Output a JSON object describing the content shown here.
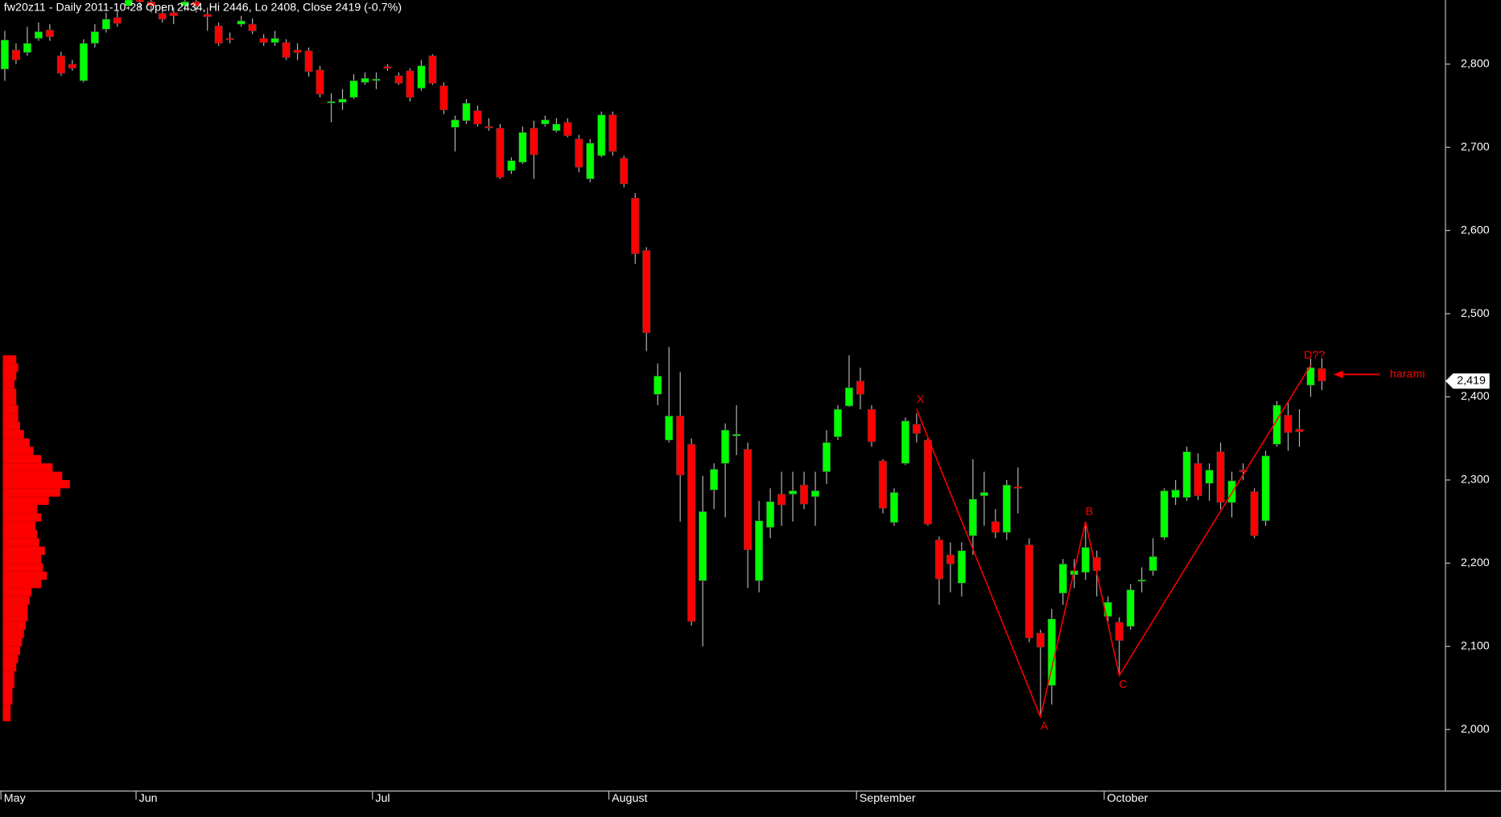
{
  "chart_data": {
    "type": "candlestick",
    "title": "fw20z11 - Daily 2011-10-28 Open 2434, Hi 2446, Lo 2408, Close 2419 (-0.7%)",
    "categories": [
      "May",
      null,
      null,
      null,
      null,
      null,
      null,
      null,
      null,
      null,
      null,
      null,
      "Jun",
      null,
      null,
      null,
      null,
      null,
      null,
      null,
      null,
      null,
      null,
      null,
      null,
      null,
      null,
      null,
      null,
      null,
      null,
      null,
      null,
      "Jul",
      null,
      null,
      null,
      null,
      null,
      null,
      null,
      null,
      null,
      null,
      null,
      null,
      null,
      null,
      null,
      null,
      null,
      null,
      null,
      null,
      "August",
      null,
      null,
      null,
      null,
      null,
      null,
      null,
      null,
      null,
      null,
      null,
      null,
      null,
      null,
      null,
      null,
      null,
      null,
      null,
      null,
      null,
      "September",
      null,
      null,
      null,
      null,
      null,
      null,
      null,
      null,
      null,
      null,
      null,
      null,
      null,
      null,
      null,
      null,
      null,
      null,
      null,
      null,
      null,
      "October",
      null,
      null,
      null,
      null,
      null,
      null,
      null,
      null,
      null,
      null,
      null,
      null,
      null,
      null,
      null,
      null,
      null,
      null,
      null
    ],
    "open": [
      2794,
      2817,
      2814,
      2831,
      2841,
      2810,
      2800,
      2780,
      2825,
      2842,
      2856,
      2870,
      2880,
      2875,
      2861,
      2862,
      2870,
      2875,
      2860,
      2846,
      2831,
      2848,
      2848,
      2831,
      2826,
      2826,
      2817,
      2816,
      2793,
      2754,
      2754,
      2760,
      2778,
      2782,
      2797,
      2786,
      2792,
      2771,
      2810,
      2774,
      2724,
      2732,
      2744,
      2725,
      2723,
      2672,
      2682,
      2723,
      2728,
      2720,
      2730,
      2710,
      2662,
      2690,
      2739,
      2687,
      2639,
      2576,
      2403,
      2348,
      2377,
      2343,
      2179,
      2288,
      2320,
      2353,
      2337,
      2179,
      2243,
      2283,
      2283,
      2294,
      2280,
      2310,
      2352,
      2389,
      2419,
      2385,
      2323,
      2249,
      2320,
      2367,
      2348,
      2228,
      2210,
      2176,
      2233,
      2281,
      2250,
      2237,
      2292,
      2222,
      2116,
      2053,
      2164,
      2186,
      2189,
      2207,
      2136,
      2129,
      2124,
      2179,
      2191,
      2231,
      2279,
      2279,
      2320,
      2296,
      2334,
      2273,
      2312,
      2286,
      2251,
      2343,
      2378,
      2361,
      2414,
      2434
    ],
    "high": [
      2840,
      2825,
      2845,
      2850,
      2848,
      2815,
      2805,
      2830,
      2848,
      2862,
      2865,
      2890,
      2885,
      2880,
      2870,
      2868,
      2880,
      2880,
      2868,
      2850,
      2838,
      2858,
      2855,
      2836,
      2840,
      2830,
      2825,
      2820,
      2798,
      2765,
      2770,
      2788,
      2790,
      2790,
      2800,
      2790,
      2795,
      2805,
      2812,
      2778,
      2738,
      2758,
      2750,
      2735,
      2728,
      2688,
      2725,
      2732,
      2738,
      2735,
      2735,
      2715,
      2710,
      2743,
      2743,
      2690,
      2645,
      2580,
      2440,
      2460,
      2430,
      2350,
      2305,
      2320,
      2368,
      2390,
      2345,
      2275,
      2290,
      2310,
      2310,
      2310,
      2310,
      2360,
      2390,
      2450,
      2435,
      2390,
      2325,
      2290,
      2375,
      2380,
      2350,
      2232,
      2225,
      2225,
      2325,
      2310,
      2265,
      2300,
      2315,
      2230,
      2120,
      2145,
      2205,
      2205,
      2245,
      2215,
      2160,
      2135,
      2175,
      2195,
      2230,
      2290,
      2300,
      2340,
      2332,
      2320,
      2345,
      2310,
      2320,
      2290,
      2335,
      2395,
      2395,
      2385,
      2446,
      2446
    ],
    "low": [
      2780,
      2800,
      2810,
      2828,
      2828,
      2786,
      2792,
      2778,
      2820,
      2838,
      2845,
      2865,
      2866,
      2862,
      2850,
      2848,
      2864,
      2862,
      2840,
      2822,
      2825,
      2845,
      2836,
      2822,
      2822,
      2805,
      2805,
      2785,
      2760,
      2730,
      2745,
      2758,
      2775,
      2770,
      2792,
      2775,
      2755,
      2768,
      2775,
      2740,
      2695,
      2728,
      2725,
      2720,
      2662,
      2668,
      2680,
      2662,
      2725,
      2718,
      2712,
      2670,
      2658,
      2688,
      2690,
      2652,
      2560,
      2455,
      2390,
      2345,
      2250,
      2125,
      2100,
      2265,
      2255,
      2330,
      2170,
      2165,
      2230,
      2245,
      2250,
      2265,
      2245,
      2295,
      2348,
      2388,
      2385,
      2340,
      2260,
      2245,
      2318,
      2345,
      2245,
      2150,
      2165,
      2160,
      2210,
      2245,
      2230,
      2228,
      2260,
      2105,
      2015,
      2030,
      2150,
      2170,
      2180,
      2160,
      2130,
      2065,
      2120,
      2165,
      2185,
      2228,
      2270,
      2275,
      2276,
      2275,
      2265,
      2255,
      2300,
      2230,
      2245,
      2340,
      2335,
      2340,
      2400,
      2408
    ],
    "close": [
      2829,
      2805,
      2825,
      2839,
      2833,
      2789,
      2795,
      2825,
      2839,
      2854,
      2849,
      2880,
      2875,
      2870,
      2854,
      2858,
      2875,
      2870,
      2857,
      2825,
      2830,
      2852,
      2840,
      2826,
      2831,
      2808,
      2814,
      2791,
      2764,
      2755,
      2758,
      2780,
      2783,
      2782,
      2795,
      2777,
      2760,
      2798,
      2777,
      2745,
      2733,
      2753,
      2728,
      2724,
      2664,
      2684,
      2718,
      2691,
      2733,
      2728,
      2714,
      2676,
      2705,
      2739,
      2695,
      2656,
      2572,
      2477,
      2425,
      2377,
      2306,
      2130,
      2262,
      2313,
      2360,
      2355,
      2216,
      2251,
      2274,
      2270,
      2287,
      2271,
      2287,
      2345,
      2385,
      2411,
      2403,
      2346,
      2266,
      2285,
      2371,
      2356,
      2247,
      2181,
      2199,
      2215,
      2277,
      2285,
      2237,
      2294,
      2290,
      2110,
      2099,
      2133,
      2199,
      2191,
      2219,
      2191,
      2153,
      2107,
      2168,
      2180,
      2208,
      2287,
      2288,
      2334,
      2281,
      2312,
      2273,
      2299,
      2310,
      2233,
      2329,
      2390,
      2357,
      2358,
      2435,
      2419
    ],
    "up_color": "#00ff00",
    "down_color": "#ff0000",
    "wick_color": "#b4b4b4",
    "ylim": [
      1926,
      2877
    ],
    "yticks": [
      {
        "value": 2000,
        "label": "2,000"
      },
      {
        "value": 2100,
        "label": "2,100"
      },
      {
        "value": 2200,
        "label": "2,200"
      },
      {
        "value": 2300,
        "label": "2,300"
      },
      {
        "value": 2400,
        "label": "2,400"
      },
      {
        "value": 2500,
        "label": "2,500"
      },
      {
        "value": 2600,
        "label": "2,600"
      },
      {
        "value": 2700,
        "label": "2,700"
      },
      {
        "value": 2800,
        "label": "2,800"
      }
    ],
    "price_tag": {
      "value": 2419,
      "label": "2,419"
    },
    "pattern": {
      "color": "#ff0000",
      "points": [
        {
          "label": "X",
          "index": 81,
          "value": 2385
        },
        {
          "label": "A",
          "index": 92,
          "value": 2015
        },
        {
          "label": "B",
          "index": 96,
          "value": 2250
        },
        {
          "label": "C",
          "index": 99,
          "value": 2065
        },
        {
          "label": "D??",
          "index": 116,
          "value": 2438
        }
      ]
    },
    "annotation": {
      "text": "harami",
      "index": 117,
      "value": 2427
    },
    "volume_profile": {
      "color": "#ff0000",
      "bins": [
        2010,
        2020,
        2030,
        2040,
        2050,
        2060,
        2070,
        2080,
        2090,
        2100,
        2110,
        2120,
        2130,
        2140,
        2150,
        2160,
        2170,
        2180,
        2190,
        2200,
        2210,
        2220,
        2230,
        2240,
        2250,
        2260,
        2270,
        2280,
        2290,
        2300,
        2310,
        2320,
        2330,
        2340,
        2350,
        2360,
        2370,
        2380,
        2390,
        2400,
        2410,
        2420,
        2430,
        2440,
        2450
      ],
      "values": [
        8,
        8,
        10,
        10,
        12,
        12,
        14,
        16,
        18,
        20,
        22,
        24,
        26,
        26,
        28,
        30,
        40,
        46,
        42,
        40,
        44,
        38,
        36,
        34,
        40,
        36,
        48,
        60,
        70,
        62,
        52,
        40,
        32,
        28,
        22,
        18,
        16,
        16,
        14,
        14,
        12,
        14,
        16,
        14
      ]
    }
  }
}
